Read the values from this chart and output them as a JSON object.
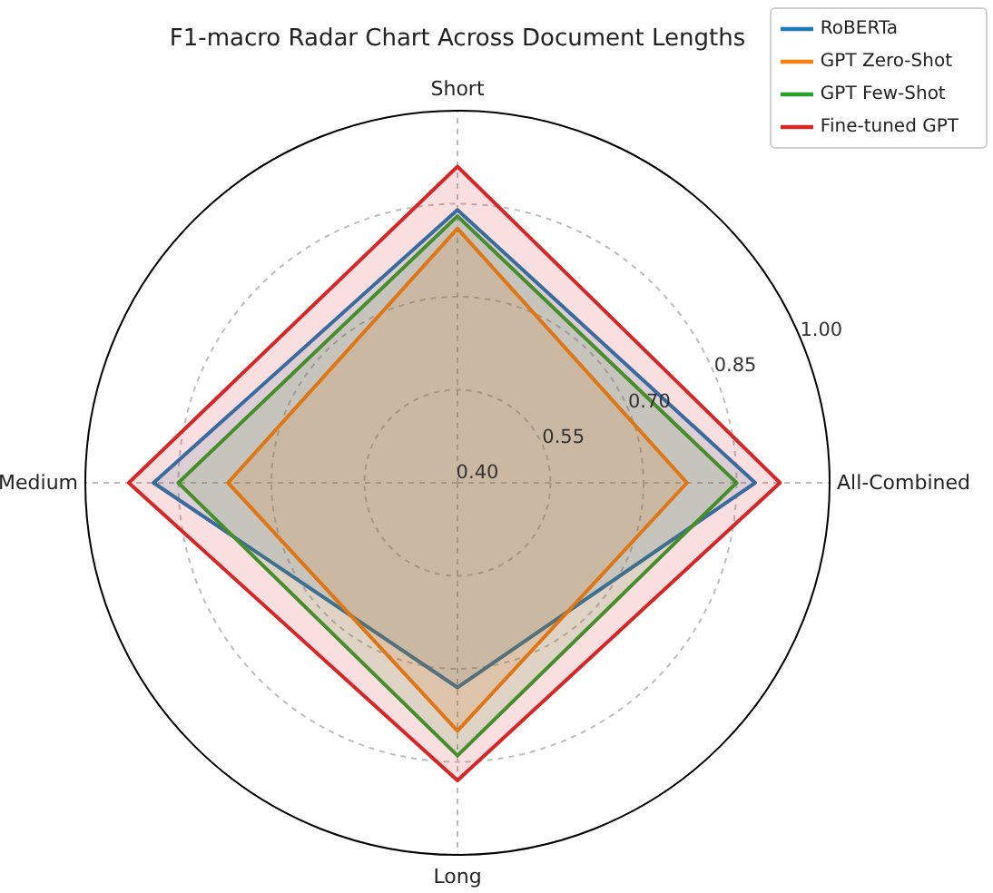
{
  "chart_data": {
    "type": "radar",
    "title": "F1-macro Radar Chart Across Document Lengths",
    "categories": [
      "Short",
      "All-Combined",
      "Long",
      "Medium"
    ],
    "series": [
      {
        "name": "RoBERTa",
        "color": "#1f77b4",
        "values": [
          0.84,
          0.88,
          0.73,
          0.89
        ]
      },
      {
        "name": "GPT Zero-Shot",
        "color": "#ff7f0e",
        "values": [
          0.81,
          0.77,
          0.8,
          0.77
        ]
      },
      {
        "name": "GPT Few-Shot",
        "color": "#2ca02c",
        "values": [
          0.83,
          0.85,
          0.84,
          0.85
        ]
      },
      {
        "name": "Fine-tuned GPT",
        "color": "#d62728",
        "values": [
          0.91,
          0.92,
          0.88,
          0.93
        ]
      }
    ],
    "ylim": [
      0.4,
      1.0
    ],
    "yticks": [
      {
        "value": 0.4,
        "label": "0.40"
      },
      {
        "value": 0.55,
        "label": "0.55"
      },
      {
        "value": 0.7,
        "label": "0.70"
      },
      {
        "value": 0.85,
        "label": "0.85"
      },
      {
        "value": 1.0,
        "label": "1.00"
      }
    ],
    "grid": true,
    "legend": "top right"
  }
}
